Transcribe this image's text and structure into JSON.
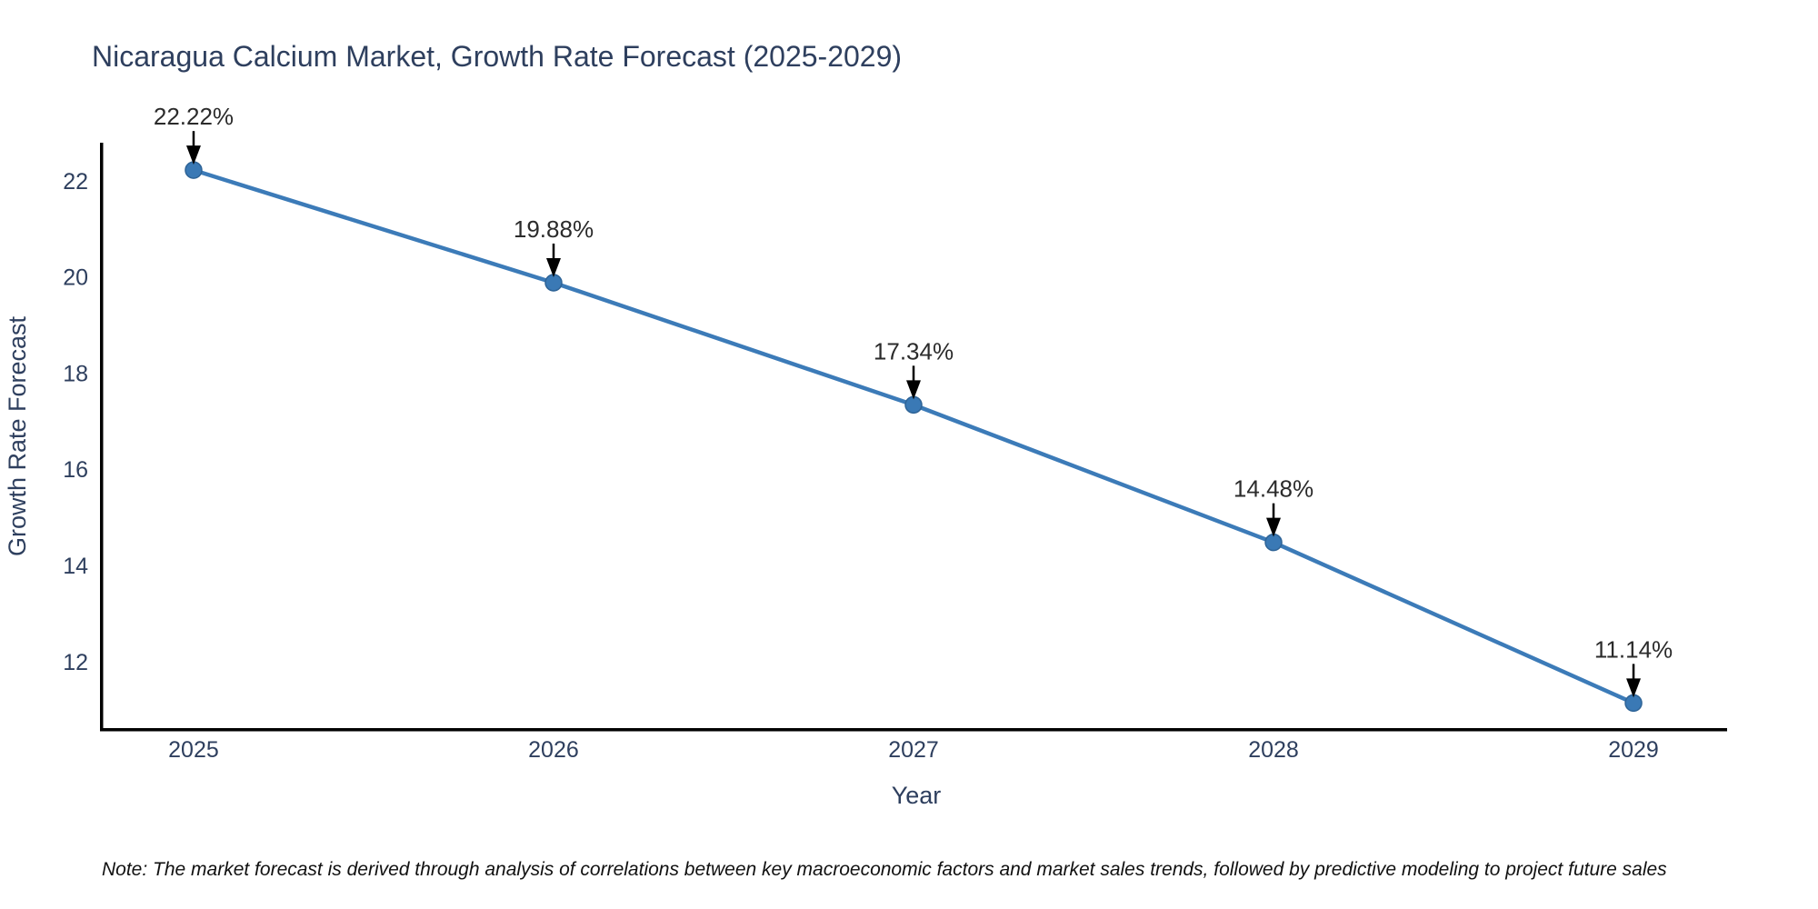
{
  "chart_data": {
    "type": "line",
    "title": "Nicaragua Calcium Market, Growth Rate Forecast (2025-2029)",
    "xlabel": "Year",
    "ylabel": "Growth Rate Forecast",
    "x": [
      2025,
      2026,
      2027,
      2028,
      2029
    ],
    "series": [
      {
        "name": "Growth Rate Forecast",
        "values": [
          22.22,
          19.88,
          17.34,
          14.48,
          11.14
        ]
      }
    ],
    "point_labels": [
      "22.22%",
      "19.88%",
      "17.34%",
      "14.48%",
      "11.14%"
    ],
    "xtick_labels": [
      "2025",
      "2026",
      "2027",
      "2028",
      "2029"
    ],
    "ytick_values": [
      12,
      14,
      16,
      18,
      20,
      22
    ],
    "ylim": [
      10.58,
      22.79
    ],
    "xlim": [
      2024.74,
      2029.26
    ],
    "grid": false,
    "legend_position": "none",
    "annotation_style": "value label with downward black arrow above each marker",
    "colors": {
      "line": "#3c7bb8",
      "marker_fill": "#3a79b5",
      "marker_edge": "#2e6396",
      "axis": "#000000",
      "chart_text": "#2e3f5e",
      "annotation_text": "#2b2b2b",
      "arrow": "#000000",
      "note_text": "#111111",
      "background": "#ffffff"
    }
  },
  "note": {
    "text": "Note: The market forecast is derived through analysis of correlations between key macroeconomic factors and market sales trends, followed by predictive modeling to project future sales"
  }
}
